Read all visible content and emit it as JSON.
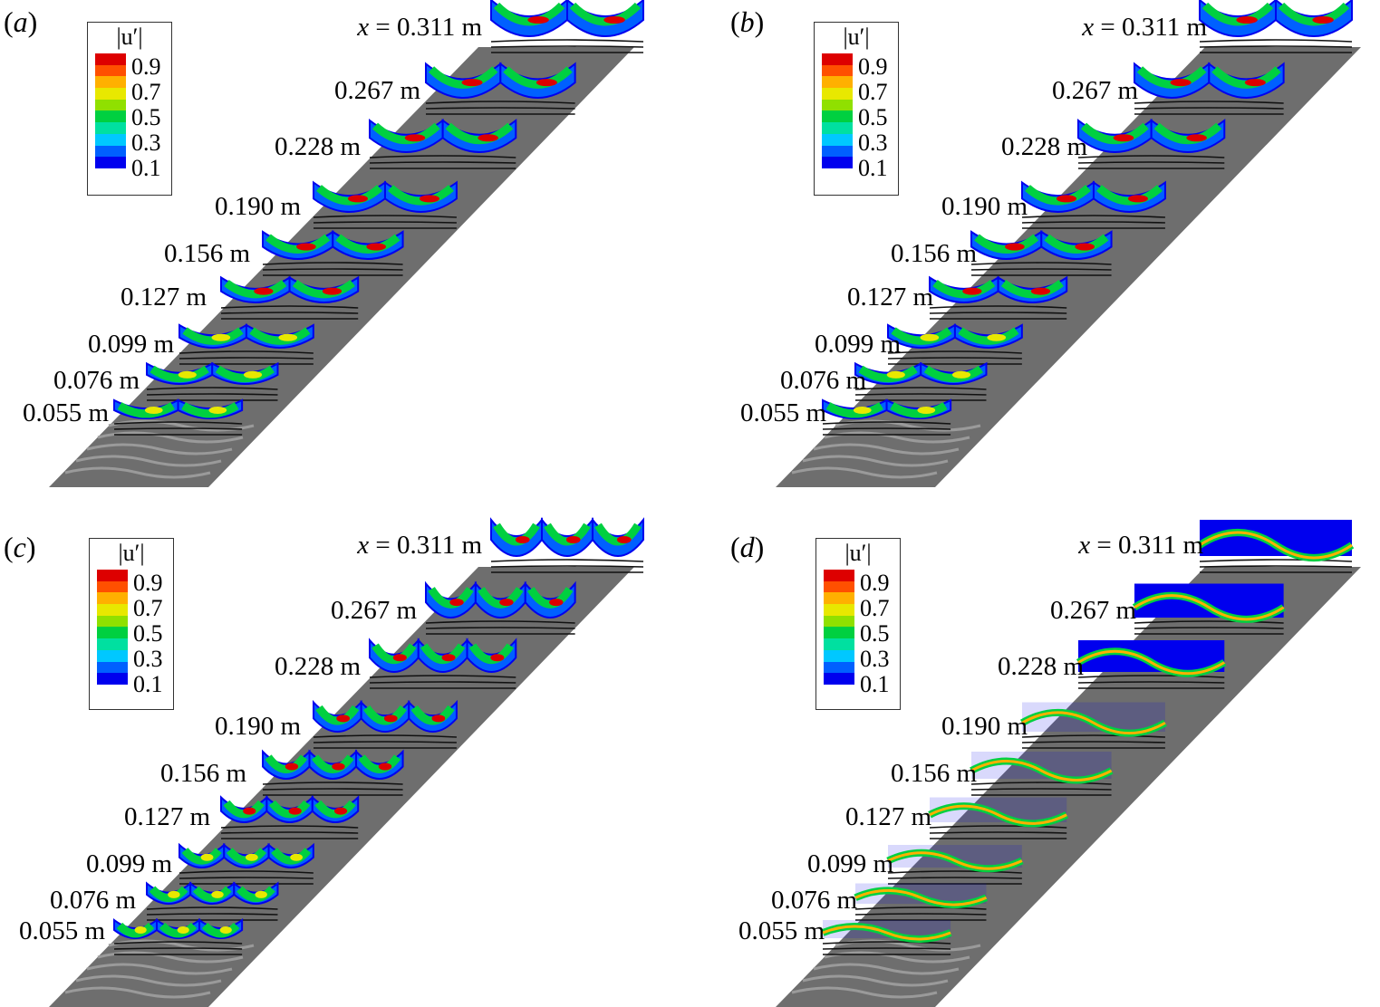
{
  "legend": {
    "title": "|u′|",
    "ticks": [
      "0.9",
      "0.7",
      "0.5",
      "0.3",
      "0.1"
    ]
  },
  "x_prefix": "x = ",
  "colors": {
    "plate": "#6e6e6e",
    "jet": [
      "#0000ee",
      "#0060ff",
      "#00c8ff",
      "#00e0a0",
      "#00d040",
      "#90e000",
      "#e8e800",
      "#ffb000",
      "#ff5000",
      "#dd0000"
    ]
  },
  "panels": [
    {
      "label": "a",
      "slices": [
        "0.311 m",
        "0.267 m",
        "0.228 m",
        "0.190 m",
        "0.156 m",
        "0.127 m",
        "0.099 m",
        "0.076 m",
        "0.055 m"
      ]
    },
    {
      "label": "b",
      "slices": [
        "0.311 m",
        "0.267 m",
        "0.228 m",
        "0.190 m",
        "0.156 m",
        "0.127 m",
        "0.099 m",
        "0.076 m",
        "0.055 m"
      ]
    },
    {
      "label": "c",
      "slices": [
        "0.311 m",
        "0.267 m",
        "0.228 m",
        "0.190 m",
        "0.156 m",
        "0.127 m",
        "0.099 m",
        "0.076 m",
        "0.055 m"
      ]
    },
    {
      "label": "d",
      "slices": [
        "0.311 m",
        "0.267 m",
        "0.228 m",
        "0.190 m",
        "0.156 m",
        "0.127 m",
        "0.099 m",
        "0.076 m",
        "0.055 m"
      ]
    }
  ]
}
